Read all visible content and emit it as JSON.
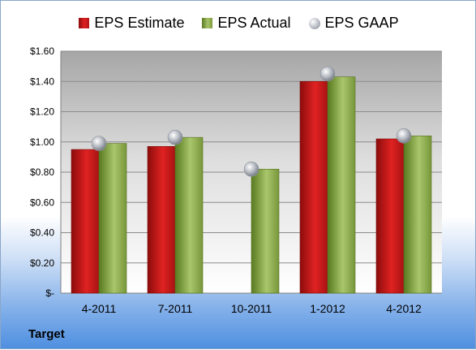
{
  "chart_data": {
    "type": "bar",
    "categories": [
      "4-2011",
      "7-2011",
      "10-2011",
      "1-2012",
      "4-2012"
    ],
    "series": [
      {
        "name": "EPS Estimate",
        "kind": "bar",
        "color": "#c81818",
        "values": [
          0.95,
          0.97,
          null,
          1.4,
          1.02
        ]
      },
      {
        "name": "EPS Actual",
        "kind": "bar",
        "color": "#8fae4f",
        "values": [
          0.99,
          1.03,
          0.82,
          1.43,
          1.04
        ]
      },
      {
        "name": "EPS GAAP",
        "kind": "marker",
        "color": "#b8bcc4",
        "values": [
          0.99,
          1.03,
          0.82,
          1.45,
          1.04
        ]
      }
    ],
    "yticks": [
      {
        "value": 0,
        "label": "$-"
      },
      {
        "value": 0.2,
        "label": "$0.20"
      },
      {
        "value": 0.4,
        "label": "$0.40"
      },
      {
        "value": 0.6,
        "label": "$0.60"
      },
      {
        "value": 0.8,
        "label": "$0.80"
      },
      {
        "value": 1.0,
        "label": "$1.00"
      },
      {
        "value": 1.2,
        "label": "$1.20"
      },
      {
        "value": 1.4,
        "label": "$1.40"
      },
      {
        "value": 1.6,
        "label": "$1.60"
      }
    ],
    "ylim": [
      0,
      1.6
    ],
    "grid": true,
    "legend_position": "top-center",
    "title": "",
    "xlabel": "",
    "ylabel": ""
  },
  "footer": {
    "company": "Target"
  }
}
